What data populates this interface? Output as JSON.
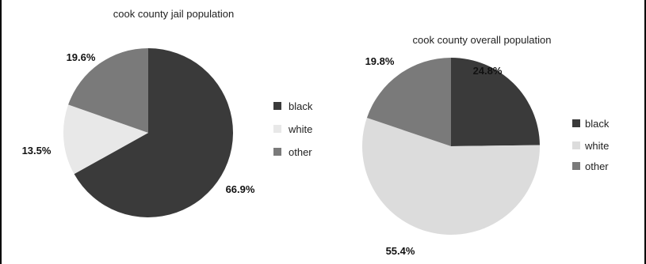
{
  "chart_data": [
    {
      "type": "pie",
      "title": "cook county jail population",
      "series": [
        {
          "name": "black",
          "value": 66.9,
          "label": "66.9%",
          "color": "#3a3a3a"
        },
        {
          "name": "white",
          "value": 13.5,
          "label": "13.5%",
          "color": "#e8e8e8"
        },
        {
          "name": "other",
          "value": 19.6,
          "label": "19.6%",
          "color": "#7a7a7a"
        }
      ],
      "legend": [
        "black",
        "white",
        "other"
      ],
      "legend_position": "right"
    },
    {
      "type": "pie",
      "title": "cook county overall population",
      "series": [
        {
          "name": "black",
          "value": 24.8,
          "label": "24.8%",
          "color": "#3a3a3a"
        },
        {
          "name": "white",
          "value": 55.4,
          "label": "55.4%",
          "color": "#dcdcdc"
        },
        {
          "name": "other",
          "value": 19.8,
          "label": "19.8%",
          "color": "#7a7a7a"
        }
      ],
      "legend": [
        "black",
        "white",
        "other"
      ],
      "legend_position": "right"
    }
  ]
}
